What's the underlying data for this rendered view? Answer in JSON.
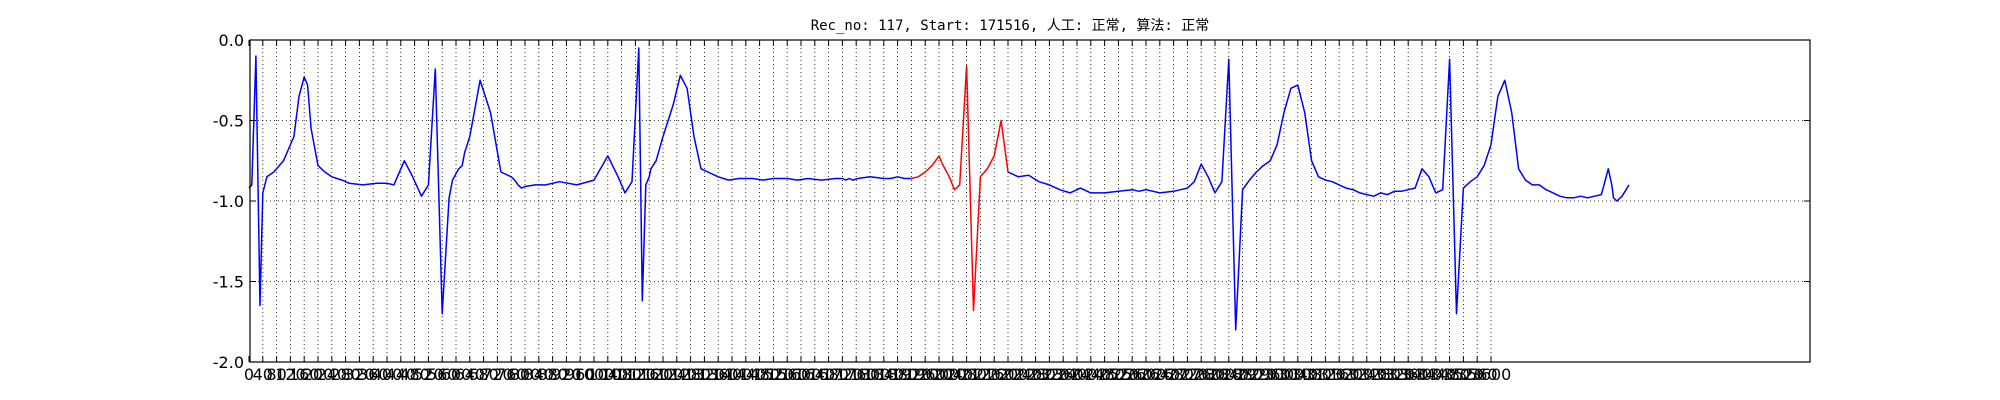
{
  "chart_data": {
    "type": "line",
    "title": "Rec_no: 117, Start: 171516, 人工: 正常, 算法: 正常",
    "xlabel": "",
    "ylabel": "",
    "xlim": [
      0,
      4000
    ],
    "ylim": [
      -2.0,
      0.0
    ],
    "x_ticks": [
      0,
      40,
      80,
      120,
      160,
      200,
      240,
      280,
      320,
      360,
      400,
      440,
      480,
      520,
      560,
      600,
      640,
      680,
      720,
      760,
      800,
      840,
      880,
      920,
      960,
      1000,
      1040,
      1080,
      1120,
      1160,
      1200,
      1240,
      1280,
      1320,
      1360,
      1400,
      1440,
      1480,
      1520,
      1560,
      1600,
      1640,
      1680,
      1720,
      1760,
      1800,
      1840,
      1880,
      1920,
      1960,
      2000,
      2040,
      2080,
      2120,
      2160,
      2200,
      2240,
      2280,
      2320,
      2360,
      2400,
      2440,
      2480,
      2520,
      2560,
      2600,
      2640,
      2680,
      2720,
      2760,
      2800,
      2840,
      2880,
      2920,
      2960,
      3000,
      3040,
      3080,
      3120,
      3160,
      3200,
      3240,
      3280,
      3320,
      3360,
      3400,
      3440,
      3480,
      3520,
      3560,
      3600
    ],
    "y_ticks": [
      0.0,
      -0.5,
      -1.0,
      -1.5,
      -2.0
    ],
    "y_tick_labels": [
      "0.0",
      "-0.5",
      "-1.0",
      "-1.5",
      "-2.0"
    ],
    "grid": true,
    "grid_style": "dotted",
    "series": [
      {
        "color": "#0000ff",
        "segments": [
          {
            "x": [
              0,
              8,
              20,
              32,
              40,
              52,
              72,
              100,
              130,
              145,
              160,
              170,
              180,
              200,
              220,
              240,
              270,
              290,
              330,
              370,
              400,
              420,
              450,
              470,
              500,
              520,
              540,
              560,
              580,
              590,
              600,
              608,
              618,
              625,
              640,
              670,
              700,
              730,
              760,
              770,
              780,
              790,
              800,
              830,
              860,
              900,
              950,
              1000,
              1040,
              1070,
              1090,
              1110,
              1130,
              1140,
              1150,
              1160,
              1165,
              1180,
              1200,
              1230,
              1250,
              1270,
              1290,
              1310,
              1330,
              1360,
              1390,
              1420,
              1460,
              1490,
              1520,
              1540,
              1560,
              1590,
              1620,
              1660,
              1700,
              1720,
              1730,
              1740,
              1750,
              1765,
              1800,
              1840,
              1860,
              1880,
              1900,
              1920
            ],
            "y": [
              -0.92,
              -0.9,
              -0.1,
              -1.65,
              -0.95,
              -0.85,
              -0.82,
              -0.75,
              -0.6,
              -0.35,
              -0.23,
              -0.28,
              -0.55,
              -0.78,
              -0.82,
              -0.85,
              -0.87,
              -0.89,
              -0.9,
              -0.89,
              -0.89,
              -0.9,
              -0.75,
              -0.83,
              -0.97,
              -0.9,
              -0.18,
              -1.7,
              -0.98,
              -0.87,
              -0.83,
              -0.8,
              -0.78,
              -0.7,
              -0.6,
              -0.25,
              -0.45,
              -0.82,
              -0.85,
              -0.87,
              -0.9,
              -0.92,
              -0.91,
              -0.9,
              -0.9,
              -0.88,
              -0.9,
              -0.87,
              -0.72,
              -0.85,
              -0.95,
              -0.88,
              -0.05,
              -1.62,
              -0.9,
              -0.85,
              -0.8,
              -0.75,
              -0.6,
              -0.4,
              -0.22,
              -0.3,
              -0.6,
              -0.8,
              -0.82,
              -0.85,
              -0.87,
              -0.86,
              -0.86,
              -0.87,
              -0.86,
              -0.86,
              -0.86,
              -0.87,
              -0.86,
              -0.87,
              -0.86,
              -0.86,
              -0.87,
              -0.86,
              -0.87,
              -0.86,
              -0.85,
              -0.86,
              -0.86,
              -0.85,
              -0.86,
              -0.86
            ]
          },
          {
            "x": [
              2200,
              2230,
              2260,
              2290,
              2320,
              2350,
              2380,
              2390,
              2400,
              2410,
              2420,
              2440,
              2480,
              2520,
              2560,
              2580,
              2600,
              2640,
              2680,
              2700,
              2720,
              2740,
              2760,
              2780,
              2800,
              2820,
              2840,
              2860,
              2880,
              2900,
              2920,
              2940,
              2960,
              2980,
              3000,
              3020,
              3040,
              3060,
              3080,
              3100,
              3120,
              3140,
              3160,
              3180,
              3200,
              3220,
              3240,
              3260,
              3280,
              3300,
              3320,
              3340,
              3360,
              3380,
              3400,
              3420,
              3440,
              3460,
              3480,
              3500,
              3520,
              3540,
              3560,
              3580,
              3600,
              3610,
              3620,
              3640,
              3660,
              3680,
              3700,
              3720,
              3740,
              3760,
              3780,
              3800,
              3820,
              3840,
              3860,
              3880,
              3900,
              3920,
              3940,
              3950,
              3955,
              3965,
              3980,
              4000
            ],
            "y": [
              -0.82,
              -0.85,
              -0.84,
              -0.88,
              -0.9,
              -0.93,
              -0.95,
              -0.94,
              -0.93,
              -0.92,
              -0.93,
              -0.95,
              -0.95,
              -0.94,
              -0.93,
              -0.94,
              -0.93,
              -0.95,
              -0.94,
              -0.93,
              -0.92,
              -0.88,
              -0.77,
              -0.85,
              -0.95,
              -0.88,
              -0.12,
              -1.8,
              -0.93,
              -0.87,
              -0.82,
              -0.78,
              -0.75,
              -0.65,
              -0.45,
              -0.3,
              -0.28,
              -0.45,
              -0.75,
              -0.85,
              -0.87,
              -0.88,
              -0.9,
              -0.92,
              -0.93,
              -0.95,
              -0.96,
              -0.97,
              -0.95,
              -0.96,
              -0.94,
              -0.94,
              -0.93,
              -0.92,
              -0.8,
              -0.85,
              -0.95,
              -0.93,
              -0.12,
              -1.7,
              -0.92,
              -0.88,
              -0.85,
              -0.78,
              -0.65,
              -0.5,
              -0.35,
              -0.25,
              -0.45,
              -0.8,
              -0.87,
              -0.9,
              -0.9,
              -0.93,
              -0.95,
              -0.97,
              -0.98,
              -0.98,
              -0.97,
              -0.98,
              -0.97,
              -0.96,
              -0.8,
              -0.9,
              -0.98,
              -1.0,
              -0.97,
              -0.9
            ]
          }
        ]
      },
      {
        "color": "#ff0000",
        "segments": [
          {
            "x": [
              1920,
              1940,
              1960,
              1980,
              2000,
              2010,
              2030,
              2045,
              2060,
              2080,
              2100,
              2120,
              2140,
              2160,
              2180,
              2200
            ],
            "y": [
              -0.86,
              -0.85,
              -0.82,
              -0.78,
              -0.72,
              -0.77,
              -0.85,
              -0.93,
              -0.9,
              -0.16,
              -1.68,
              -0.85,
              -0.8,
              -0.72,
              -0.5,
              -0.82
            ]
          }
        ]
      }
    ]
  }
}
